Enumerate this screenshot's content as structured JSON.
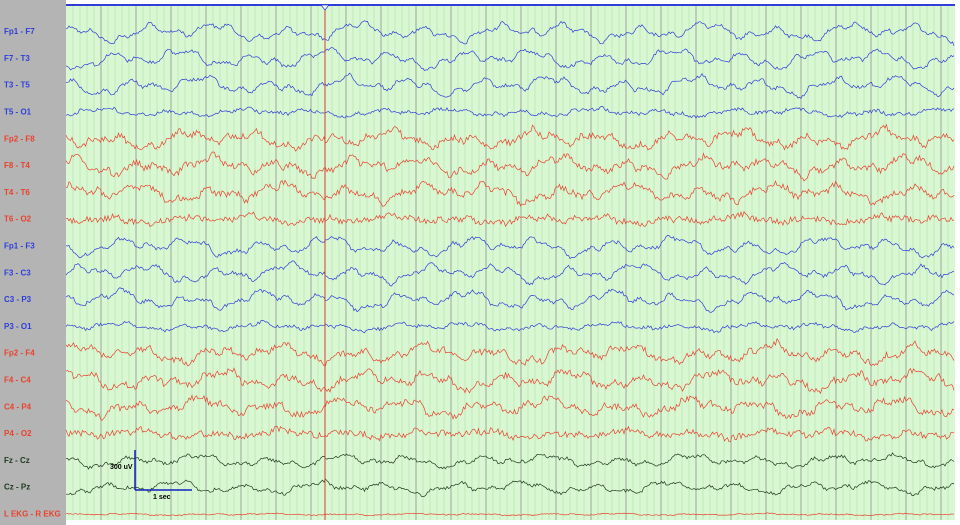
{
  "channels": [
    {
      "label": "Fp1 - F7",
      "color": "#2f3fd8"
    },
    {
      "label": "F7 - T3",
      "color": "#2f3fd8"
    },
    {
      "label": "T3 - T5",
      "color": "#2f3fd8"
    },
    {
      "label": "T5 - O1",
      "color": "#2f3fd8"
    },
    {
      "label": "Fp2 - F8",
      "color": "#e8432f"
    },
    {
      "label": "F8 - T4",
      "color": "#e8432f"
    },
    {
      "label": "T4 - T6",
      "color": "#e8432f"
    },
    {
      "label": "T6 - O2",
      "color": "#e8432f"
    },
    {
      "label": "Fp1 - F3",
      "color": "#2f3fd8"
    },
    {
      "label": "F3 - C3",
      "color": "#2f3fd8"
    },
    {
      "label": "C3 - P3",
      "color": "#2f3fd8"
    },
    {
      "label": "P3 - O1",
      "color": "#2f3fd8"
    },
    {
      "label": "Fp2 - F4",
      "color": "#e8432f"
    },
    {
      "label": "F4 - C4",
      "color": "#e8432f"
    },
    {
      "label": "C4 - P4",
      "color": "#e8432f"
    },
    {
      "label": "P4 - O2",
      "color": "#e8432f"
    },
    {
      "label": "Fz - Cz",
      "color": "#1f3a1f"
    },
    {
      "label": "Cz - Pz",
      "color": "#1f3a1f"
    },
    {
      "label": "L EKG - R EKG",
      "color": "#e8432f"
    }
  ],
  "scale_bar": {
    "amplitude": "300 uV",
    "time": "1 sec"
  }
}
